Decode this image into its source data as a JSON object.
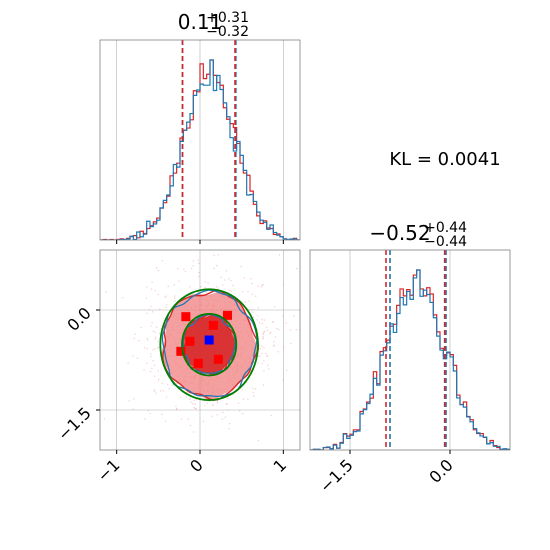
{
  "colors": {
    "red": "#d62728",
    "blue": "#1f77b4",
    "green": "#008000",
    "grid": "#b0b0b0",
    "marker_red": "#ff0000",
    "marker_blue": "#0000ff"
  },
  "chart_data": [
    {
      "type": "histogram",
      "panel": "top-left",
      "parameter_index": 0,
      "title_value": "0.11",
      "title_plus": "+0.31",
      "title_minus": "−0.32",
      "xlim": [
        -1.2,
        1.2
      ],
      "quantile_lines_red": [
        -0.21,
        0.42
      ],
      "quantile_lines_blue": [
        -0.21,
        0.43
      ],
      "series": [
        {
          "name": "",
          "color": "red",
          "center": 0.11,
          "sigma": 0.31
        },
        {
          "name": "",
          "color": "blue",
          "center": 0.11,
          "sigma": 0.31
        }
      ],
      "grid": true
    },
    {
      "type": "histogram",
      "panel": "bottom-right",
      "parameter_index": 1,
      "title_value": "−0.52",
      "title_plus": "+0.44",
      "title_minus": "−0.44",
      "xlim": [
        -2.1,
        0.9
      ],
      "xticks": [
        "−1.5",
        "0.0"
      ],
      "xtick_values": [
        -1.5,
        0.0
      ],
      "quantile_lines_red": [
        -0.96,
        -0.08
      ],
      "quantile_lines_blue": [
        -0.9,
        -0.06
      ],
      "series": [
        {
          "name": "",
          "color": "red",
          "center": -0.52,
          "sigma": 0.44
        },
        {
          "name": "",
          "color": "blue",
          "center": -0.52,
          "sigma": 0.44
        }
      ],
      "grid": true
    },
    {
      "type": "scatter",
      "panel": "bottom-left",
      "xlim": [
        -1.2,
        1.2
      ],
      "ylim": [
        -2.1,
        0.9
      ],
      "xticks": [
        "−1",
        "0",
        "1"
      ],
      "xtick_values": [
        -1,
        0,
        1
      ],
      "yticks": [
        "0.0",
        "−1.5"
      ],
      "ytick_values": [
        0.0,
        -1.5
      ],
      "center": [
        0.11,
        -0.52
      ],
      "truth_marker": [
        0.11,
        -0.45
      ],
      "contour_levels_sigma": [
        1.0,
        1.8
      ],
      "sigma": [
        0.31,
        0.44
      ],
      "red_markers": [
        [
          -0.17,
          -0.1
        ],
        [
          0.33,
          -0.08
        ],
        [
          0.16,
          -0.23
        ],
        [
          -0.12,
          -0.47
        ],
        [
          -0.23,
          -0.62
        ],
        [
          0.22,
          -0.74
        ],
        [
          -0.02,
          -0.8
        ]
      ],
      "grid": true
    }
  ],
  "annotation": {
    "kl_text": "KL = 0.0041"
  }
}
